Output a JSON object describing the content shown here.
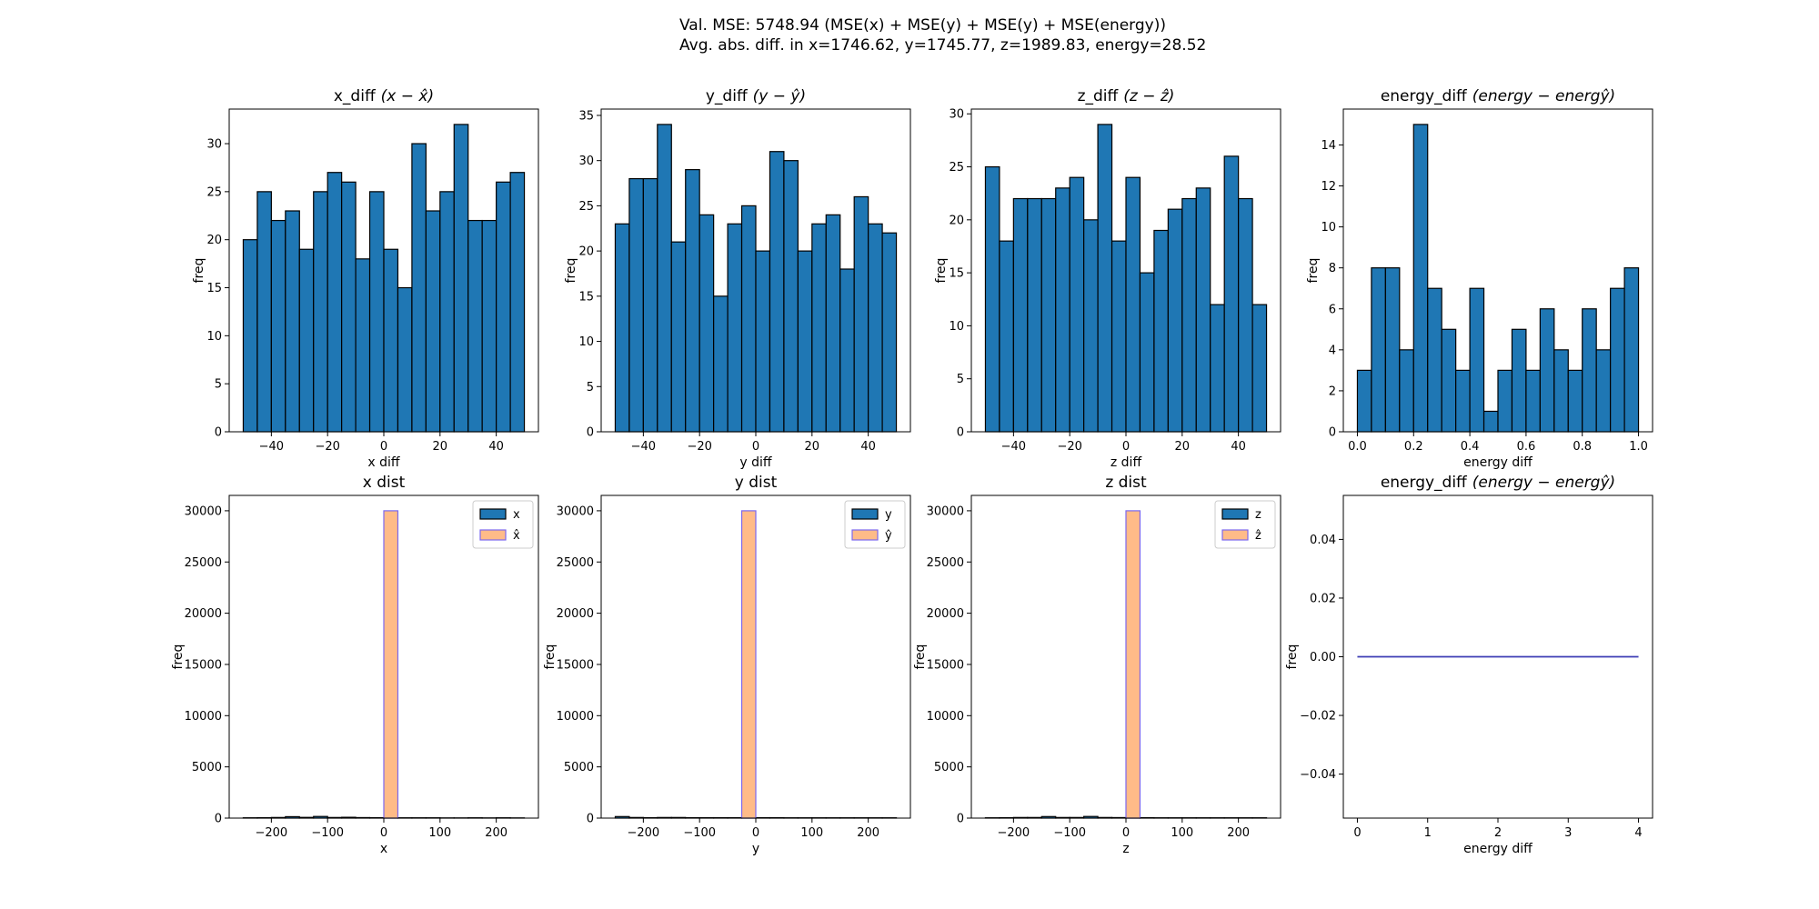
{
  "suptitle": {
    "line1": "Val. MSE: 5748.94 (MSE(x) + MSE(y) + MSE(y) + MSE(energy))",
    "line2": "Avg. abs. diff. in x=1746.62, y=1745.77, z=1989.83, energy=28.52"
  },
  "colors": {
    "bar": "#1f77b4",
    "hat": "#ffbb88",
    "hat_edge": "#7b68ee",
    "edge": "#000000",
    "line": "#3c3cb4"
  },
  "chart_data": [
    {
      "type": "bar",
      "panel": "x_diff",
      "title": "x_diff",
      "title_math": "(x − x̂)",
      "xlabel": "x diff",
      "ylabel": "freq",
      "bin_start": -50,
      "bin_width": 5,
      "values": [
        20,
        25,
        22,
        23,
        19,
        25,
        27,
        26,
        18,
        25,
        19,
        15,
        30,
        23,
        25,
        32,
        22,
        22,
        26,
        27
      ],
      "xlim": [
        -55,
        55
      ],
      "ylim": [
        0,
        33.6
      ],
      "xticks": [
        -40,
        -20,
        0,
        20,
        40
      ],
      "xtick_labels": [
        "−40",
        "−20",
        "0",
        "20",
        "40"
      ],
      "yticks": [
        0,
        5,
        10,
        15,
        20,
        25,
        30
      ],
      "ytick_labels": [
        "0",
        "5",
        "10",
        "15",
        "20",
        "25",
        "30"
      ]
    },
    {
      "type": "bar",
      "panel": "y_diff",
      "title": "y_diff",
      "title_math": "(y − ŷ)",
      "xlabel": "y diff",
      "ylabel": "freq",
      "bin_start": -50,
      "bin_width": 5,
      "values": [
        23,
        28,
        28,
        34,
        21,
        29,
        24,
        15,
        23,
        25,
        20,
        31,
        30,
        20,
        23,
        24,
        18,
        26,
        23,
        22
      ],
      "xlim": [
        -55,
        55
      ],
      "ylim": [
        0,
        35.7
      ],
      "xticks": [
        -40,
        -20,
        0,
        20,
        40
      ],
      "xtick_labels": [
        "−40",
        "−20",
        "0",
        "20",
        "40"
      ],
      "yticks": [
        0,
        5,
        10,
        15,
        20,
        25,
        30,
        35
      ],
      "ytick_labels": [
        "0",
        "5",
        "10",
        "15",
        "20",
        "25",
        "30",
        "35"
      ]
    },
    {
      "type": "bar",
      "panel": "z_diff",
      "title": "z_diff",
      "title_math": "(z − ẑ)",
      "xlabel": "z diff",
      "ylabel": "freq",
      "bin_start": -50,
      "bin_width": 5,
      "values": [
        25,
        18,
        22,
        22,
        22,
        23,
        24,
        20,
        29,
        18,
        24,
        15,
        19,
        21,
        22,
        23,
        12,
        26,
        22,
        12
      ],
      "xlim": [
        -55,
        55
      ],
      "ylim": [
        0,
        30.45
      ],
      "xticks": [
        -40,
        -20,
        0,
        20,
        40
      ],
      "xtick_labels": [
        "−40",
        "−20",
        "0",
        "20",
        "40"
      ],
      "yticks": [
        0,
        5,
        10,
        15,
        20,
        25,
        30
      ],
      "ytick_labels": [
        "0",
        "5",
        "10",
        "15",
        "20",
        "25",
        "30"
      ]
    },
    {
      "type": "bar",
      "panel": "energy_diff",
      "title": "energy_diff",
      "title_math": "(energy − energŷ)",
      "xlabel": "energy diff",
      "ylabel": "freq",
      "bin_start": 0,
      "bin_width": 0.05,
      "values": [
        3,
        8,
        8,
        4,
        15,
        7,
        5,
        3,
        7,
        1,
        3,
        5,
        3,
        6,
        4,
        3,
        6,
        4,
        7,
        8
      ],
      "xlim": [
        -0.05,
        1.05
      ],
      "ylim": [
        0,
        15.75
      ],
      "xticks": [
        0,
        0.2,
        0.4,
        0.6,
        0.8,
        1.0
      ],
      "xtick_labels": [
        "0.0",
        "0.2",
        "0.4",
        "0.6",
        "0.8",
        "1.0"
      ],
      "yticks": [
        0,
        2,
        4,
        6,
        8,
        10,
        12,
        14
      ],
      "ytick_labels": [
        "0",
        "2",
        "4",
        "6",
        "8",
        "10",
        "12",
        "14"
      ]
    },
    {
      "type": "bar",
      "panel": "x_dist",
      "title": "x dist",
      "title_math": "",
      "xlabel": "x",
      "ylabel": "freq",
      "bin_start": -250,
      "bin_width": 25,
      "series": [
        {
          "name": "x",
          "values": [
            30,
            40,
            60,
            140,
            70,
            160,
            60,
            80,
            50,
            40,
            40,
            30,
            30,
            30,
            20,
            20,
            30,
            20,
            30,
            20
          ]
        },
        {
          "name": "x̂",
          "bin_start": 0,
          "bin_width": 25,
          "values": [
            30000
          ]
        }
      ],
      "legend": "top-right",
      "xlim": [
        -275,
        275
      ],
      "ylim": [
        0,
        31500
      ],
      "xticks": [
        -200,
        -100,
        0,
        100,
        200
      ],
      "xtick_labels": [
        "−200",
        "−100",
        "0",
        "100",
        "200"
      ],
      "yticks": [
        0,
        5000,
        10000,
        15000,
        20000,
        25000,
        30000
      ],
      "ytick_labels": [
        "0",
        "5000",
        "10000",
        "15000",
        "20000",
        "25000",
        "30000"
      ]
    },
    {
      "type": "bar",
      "panel": "y_dist",
      "title": "y dist",
      "title_math": "",
      "xlabel": "y",
      "ylabel": "freq",
      "bin_start": -250,
      "bin_width": 25,
      "series": [
        {
          "name": "y",
          "values": [
            150,
            60,
            40,
            60,
            60,
            40,
            40,
            40,
            40,
            40,
            40,
            40,
            30,
            30,
            30,
            30,
            30,
            30,
            30,
            30
          ]
        },
        {
          "name": "ŷ",
          "bin_start": -25,
          "bin_width": 25,
          "values": [
            30000
          ]
        }
      ],
      "legend": "top-right",
      "xlim": [
        -275,
        275
      ],
      "ylim": [
        0,
        31500
      ],
      "xticks": [
        -200,
        -100,
        0,
        100,
        200
      ],
      "xtick_labels": [
        "−200",
        "−100",
        "0",
        "100",
        "200"
      ],
      "yticks": [
        0,
        5000,
        10000,
        15000,
        20000,
        25000,
        30000
      ],
      "ytick_labels": [
        "0",
        "5000",
        "10000",
        "15000",
        "20000",
        "25000",
        "30000"
      ]
    },
    {
      "type": "bar",
      "panel": "z_dist",
      "title": "z dist",
      "title_math": "",
      "xlabel": "z",
      "ylabel": "freq",
      "bin_start": -250,
      "bin_width": 25,
      "series": [
        {
          "name": "z",
          "values": [
            30,
            40,
            60,
            60,
            150,
            60,
            60,
            160,
            60,
            50,
            40,
            40,
            30,
            30,
            30,
            30,
            30,
            30,
            30,
            30
          ]
        },
        {
          "name": "ẑ",
          "bin_start": 0,
          "bin_width": 25,
          "values": [
            30000
          ]
        }
      ],
      "legend": "top-right",
      "xlim": [
        -275,
        275
      ],
      "ylim": [
        0,
        31500
      ],
      "xticks": [
        -200,
        -100,
        0,
        100,
        200
      ],
      "xtick_labels": [
        "−200",
        "−100",
        "0",
        "100",
        "200"
      ],
      "yticks": [
        0,
        5000,
        10000,
        15000,
        20000,
        25000,
        30000
      ],
      "ytick_labels": [
        "0",
        "5000",
        "10000",
        "15000",
        "20000",
        "25000",
        "30000"
      ]
    },
    {
      "type": "line",
      "panel": "energy_dist",
      "title": "energy_diff",
      "title_math": "(energy − energŷ)",
      "xlabel": "energy diff",
      "ylabel": "freq",
      "x": [
        0,
        4
      ],
      "y": [
        0,
        0
      ],
      "xlim": [
        -0.2,
        4.2
      ],
      "ylim": [
        -0.055,
        0.055
      ],
      "xticks": [
        0,
        1,
        2,
        3,
        4
      ],
      "xtick_labels": [
        "0",
        "1",
        "2",
        "3",
        "4"
      ],
      "yticks": [
        -0.04,
        -0.02,
        0,
        0.02,
        0.04
      ],
      "ytick_labels": [
        "−0.04",
        "−0.02",
        "0.00",
        "0.02",
        "0.04"
      ]
    }
  ]
}
